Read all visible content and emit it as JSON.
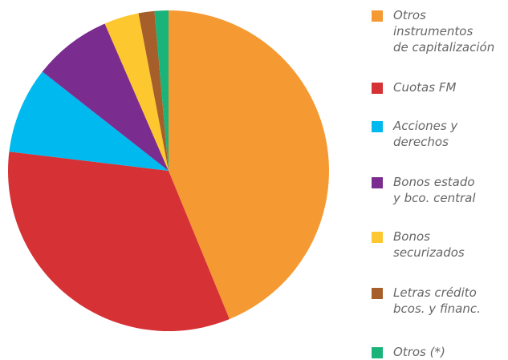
{
  "chart_data": {
    "type": "pie",
    "categories": [
      "Otros\ninstrumentos\nde capitalización",
      "Cuotas FM",
      "Acciones y\nderechos",
      "Bonos estado\ny bco. central",
      "Bonos\nsecurizados",
      "Letras crédito\nbcos. y financ.",
      "Otros (*)"
    ],
    "values": [
      43.8,
      33.1,
      8.7,
      7.9,
      3.5,
      1.6,
      1.4
    ],
    "colors": [
      "#f59a33",
      "#d63135",
      "#00b9ef",
      "#7a2d8f",
      "#fdc82f",
      "#a65f2a",
      "#1ab37a"
    ],
    "legend": "right"
  }
}
